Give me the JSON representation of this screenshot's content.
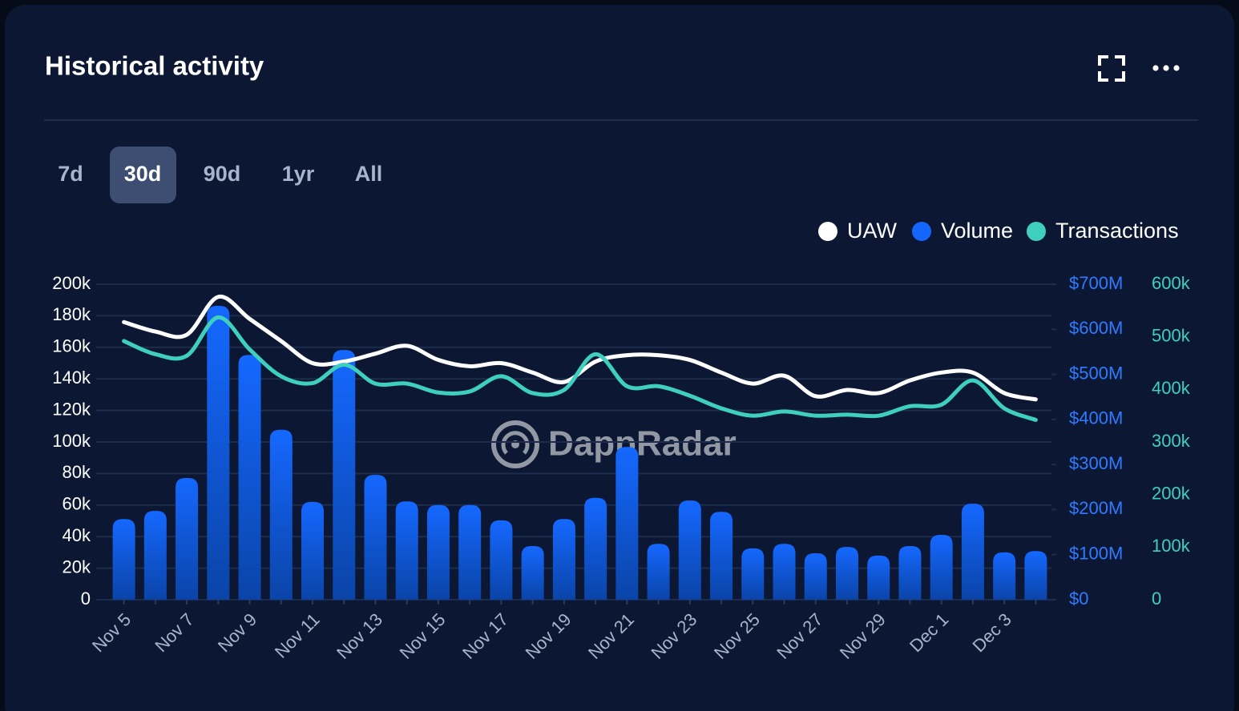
{
  "ranges": [
    "7d",
    "30d",
    "90d",
    "1yr",
    "All"
  ],
  "active_range": "30d",
  "watermark": "DappRadar",
  "chart_data": {
    "type": "combo",
    "title": "Historical activity",
    "categories": [
      "Nov 5",
      null,
      "Nov 7",
      null,
      "Nov 9",
      null,
      "Nov 11",
      null,
      "Nov 13",
      null,
      "Nov 15",
      null,
      "Nov 17",
      null,
      "Nov 19",
      null,
      "Nov 21",
      null,
      "Nov 23",
      null,
      "Nov 25",
      null,
      "Nov 27",
      null,
      "Nov 29",
      null,
      "Dec 1",
      null,
      "Dec 3",
      null
    ],
    "series": [
      {
        "name": "UAW",
        "type": "line",
        "axis": "y",
        "color": "#ffffff",
        "values": [
          176000,
          170000,
          168000,
          192000,
          178000,
          164000,
          150000,
          151000,
          156000,
          161000,
          152000,
          148000,
          150000,
          144000,
          138000,
          151000,
          155000,
          155000,
          152000,
          144000,
          137000,
          142000,
          129000,
          133000,
          131000,
          139000,
          144000,
          144000,
          131000,
          127000
        ]
      },
      {
        "name": "Volume",
        "type": "bar",
        "axis": "y2",
        "color": "#1565ff",
        "values": [
          179000000,
          197000000,
          270000000,
          652000000,
          543000000,
          377000000,
          217000000,
          554000000,
          277000000,
          218000000,
          210000000,
          210000000,
          176000000,
          119000000,
          179000000,
          226000000,
          339000000,
          124000000,
          220000000,
          195000000,
          114000000,
          124000000,
          103000000,
          117000000,
          98000000,
          119000000,
          144000000,
          213000000,
          105000000,
          108000000
        ]
      },
      {
        "name": "Transactions",
        "type": "line",
        "axis": "y3",
        "color": "#3ecfbf",
        "values": [
          492000,
          467000,
          464000,
          537000,
          476000,
          425000,
          412000,
          447000,
          411000,
          411000,
          394000,
          396000,
          425000,
          393000,
          399000,
          467000,
          406000,
          406000,
          388000,
          364000,
          350000,
          358000,
          350000,
          352000,
          350000,
          368000,
          371000,
          417000,
          364000,
          342000
        ]
      }
    ],
    "ylim": [
      0,
      200000
    ],
    "yticks": [
      0,
      {
        "value": 20000,
        "label": "20k"
      },
      {
        "value": 40000,
        "label": "40k"
      },
      {
        "value": 60000,
        "label": "60k"
      },
      {
        "value": 80000,
        "label": "80k"
      },
      {
        "value": 100000,
        "label": "100k"
      },
      {
        "value": 120000,
        "label": "120k"
      },
      {
        "value": 140000,
        "label": "140k"
      },
      {
        "value": 160000,
        "label": "160k"
      },
      {
        "value": 180000,
        "label": "180k"
      },
      {
        "value": 200000,
        "label": "200k"
      }
    ],
    "y2lim": [
      0,
      700000000
    ],
    "y2ticks": [
      {
        "value": 0,
        "label": "$0"
      },
      {
        "value": 100000000,
        "label": "$100M"
      },
      {
        "value": 200000000,
        "label": "$200M"
      },
      {
        "value": 300000000,
        "label": "$300M"
      },
      {
        "value": 400000000,
        "label": "$400M"
      },
      {
        "value": 500000000,
        "label": "$500M"
      },
      {
        "value": 600000000,
        "label": "$600M"
      },
      {
        "value": 700000000,
        "label": "$700M"
      }
    ],
    "y3lim": [
      0,
      600000
    ],
    "y3ticks": [
      0,
      {
        "value": 100000,
        "label": "100k"
      },
      {
        "value": 200000,
        "label": "200k"
      },
      {
        "value": 300000,
        "label": "300k"
      },
      {
        "value": 400000,
        "label": "400k"
      },
      {
        "value": 500000,
        "label": "500k"
      },
      {
        "value": 600000,
        "label": "600k"
      }
    ],
    "grid": true,
    "legend": "top-right"
  }
}
